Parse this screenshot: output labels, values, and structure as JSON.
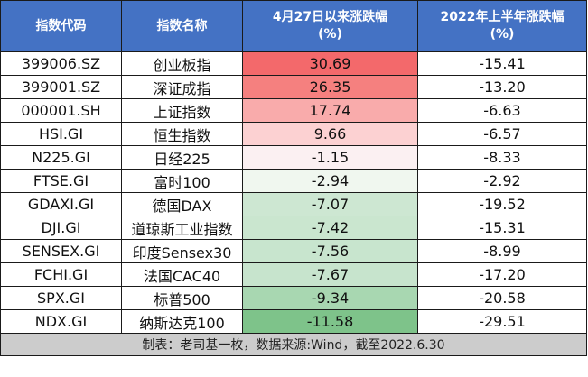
{
  "header": {
    "code": "指数代码",
    "name": "指数名称",
    "since_line1": "4月27日以来涨跌幅",
    "since_line2": "(%)",
    "h1_line1": "2022年上半年涨跌幅",
    "h1_line2": "(%)"
  },
  "rows": [
    {
      "code": "399006.SZ",
      "name": "创业板指",
      "since": "30.69",
      "h1": "-15.41",
      "since_color": "#f3696b"
    },
    {
      "code": "399001.SZ",
      "name": "深证成指",
      "since": "26.35",
      "h1": "-13.20",
      "since_color": "#f5807f"
    },
    {
      "code": "000001.SH",
      "name": "上证指数",
      "since": "17.74",
      "h1": "-6.63",
      "since_color": "#f9abab"
    },
    {
      "code": "HSI.GI",
      "name": "恒生指数",
      "since": "9.66",
      "h1": "-6.57",
      "since_color": "#fcd1d2"
    },
    {
      "code": "N225.GI",
      "name": "日经225",
      "since": "-1.15",
      "h1": "-8.33",
      "since_color": "#fbf0f2"
    },
    {
      "code": "FTSE.GI",
      "name": "富时100",
      "since": "-2.94",
      "h1": "-2.92",
      "since_color": "#f0f7ef"
    },
    {
      "code": "GDAXI.GI",
      "name": "德国DAX",
      "since": "-7.07",
      "h1": "-19.52",
      "since_color": "#cde7d2"
    },
    {
      "code": "DJI.GI",
      "name": "道琼斯工业指数",
      "since": "-7.42",
      "h1": "-15.31",
      "since_color": "#cae6cf"
    },
    {
      "code": "SENSEX.GI",
      "name": "印度Sensex30",
      "since": "-7.56",
      "h1": "-8.99",
      "since_color": "#c8e5ce"
    },
    {
      "code": "FCHI.GI",
      "name": "法国CAC40",
      "since": "-7.67",
      "h1": "-17.20",
      "since_color": "#c7e4cd"
    },
    {
      "code": "SPX.GI",
      "name": "标普500",
      "since": "-9.34",
      "h1": "-20.58",
      "since_color": "#a8d7b1"
    },
    {
      "code": "NDX.GI",
      "name": "纳斯达克100",
      "since": "-11.58",
      "h1": "-29.51",
      "since_color": "#7ec38a"
    }
  ],
  "footer": {
    "note": "制表：老司基一枚，数据来源:Wind，截至2022.6.30"
  },
  "colors": {
    "header_bg": "#4472c4",
    "footer_bg": "#cccccc"
  }
}
